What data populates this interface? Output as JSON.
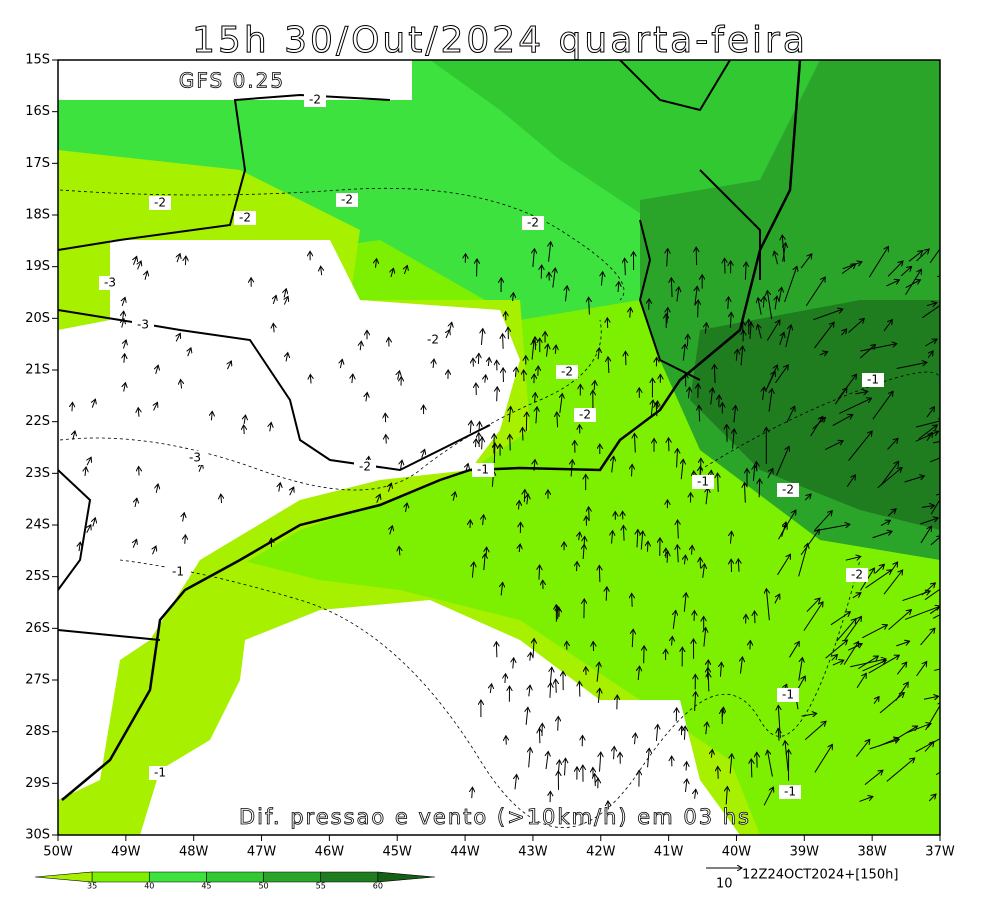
{
  "header": {
    "title": "15h 30/Out/2024 quarta-feira",
    "model": "GFS 0.25"
  },
  "map": {
    "lat_labels": [
      "15S",
      "16S",
      "17S",
      "18S",
      "19S",
      "20S",
      "21S",
      "22S",
      "23S",
      "24S",
      "25S",
      "26S",
      "27S",
      "28S",
      "29S",
      "30S"
    ],
    "lon_labels": [
      "50W",
      "49W",
      "48W",
      "47W",
      "46W",
      "45W",
      "44W",
      "43W",
      "42W",
      "41W",
      "40W",
      "39W",
      "38W",
      "37W"
    ],
    "contour_labels": [
      "-2",
      "-2",
      "-2",
      "-2",
      "-2",
      "-3",
      "-3",
      "-2",
      "-2",
      "-1",
      "-1",
      "-2",
      "-1",
      "-2",
      "-1",
      "-1",
      "-1",
      "-2",
      "-3",
      "-2",
      "-1"
    ],
    "caption": "Dif. pressao e vento (>10km/h) em 03 hs"
  },
  "colorbar": {
    "labels": [
      35,
      40,
      45,
      50,
      55,
      60
    ]
  },
  "footer": {
    "run": "12Z24OCT2024+[150h]",
    "vector_scale": "10"
  }
}
